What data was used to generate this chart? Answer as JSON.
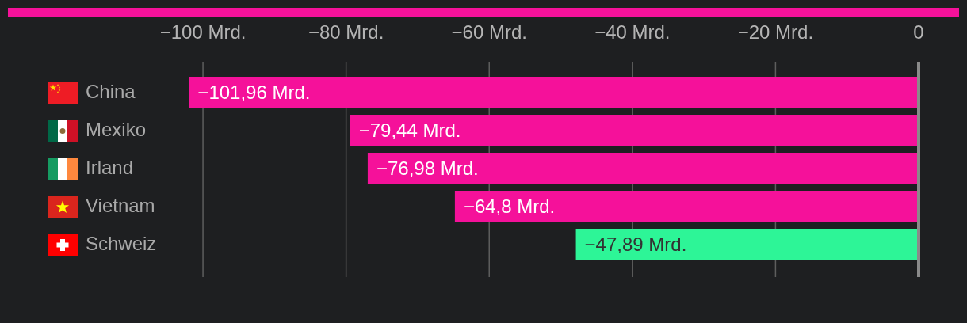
{
  "chart_data": {
    "type": "bar",
    "orientation": "horizontal",
    "categories": [
      "China",
      "Mexiko",
      "Irland",
      "Vietnam",
      "Schweiz"
    ],
    "values": [
      -101.96,
      -79.44,
      -76.98,
      -64.8,
      -47.89
    ],
    "colors": [
      "#f5119a",
      "#f5119a",
      "#f5119a",
      "#f5119a",
      "#2df597"
    ],
    "value_labels": [
      "−101,96 Mrd.",
      "−79,44 Mrd.",
      "−76,98 Mrd.",
      "−64,8 Mrd.",
      "−47,89 Mrd."
    ],
    "xlim": [
      -102,
      0
    ],
    "xticks": [
      {
        "value": -100,
        "label": "−100 Mrd."
      },
      {
        "value": -80,
        "label": "−80 Mrd."
      },
      {
        "value": -60,
        "label": "−60 Mrd."
      },
      {
        "value": -40,
        "label": "−40 Mrd."
      },
      {
        "value": -20,
        "label": "−20 Mrd."
      },
      0
    ],
    "grid": "x"
  }
}
